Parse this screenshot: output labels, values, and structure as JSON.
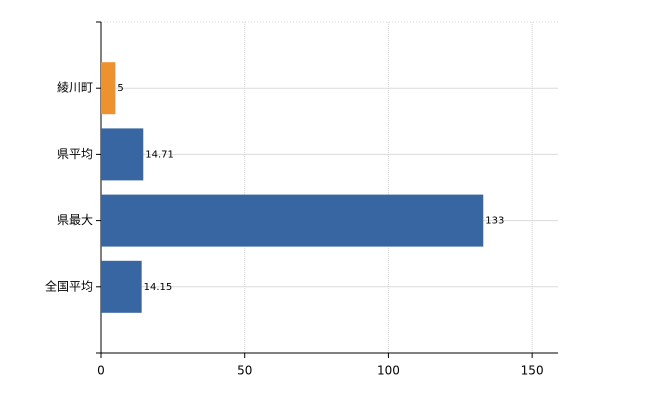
{
  "chart_data": {
    "type": "barh",
    "categories": [
      "綾川町",
      "県平均",
      "県最大",
      "全国平均"
    ],
    "values": [
      5,
      14.71,
      133,
      14.15
    ],
    "colors": [
      "#ee922f",
      "#3866a3",
      "#3866a3",
      "#3866a3"
    ],
    "xlim": [
      0,
      159
    ],
    "xticks": [
      0,
      50,
      100,
      150
    ],
    "grid": true
  }
}
